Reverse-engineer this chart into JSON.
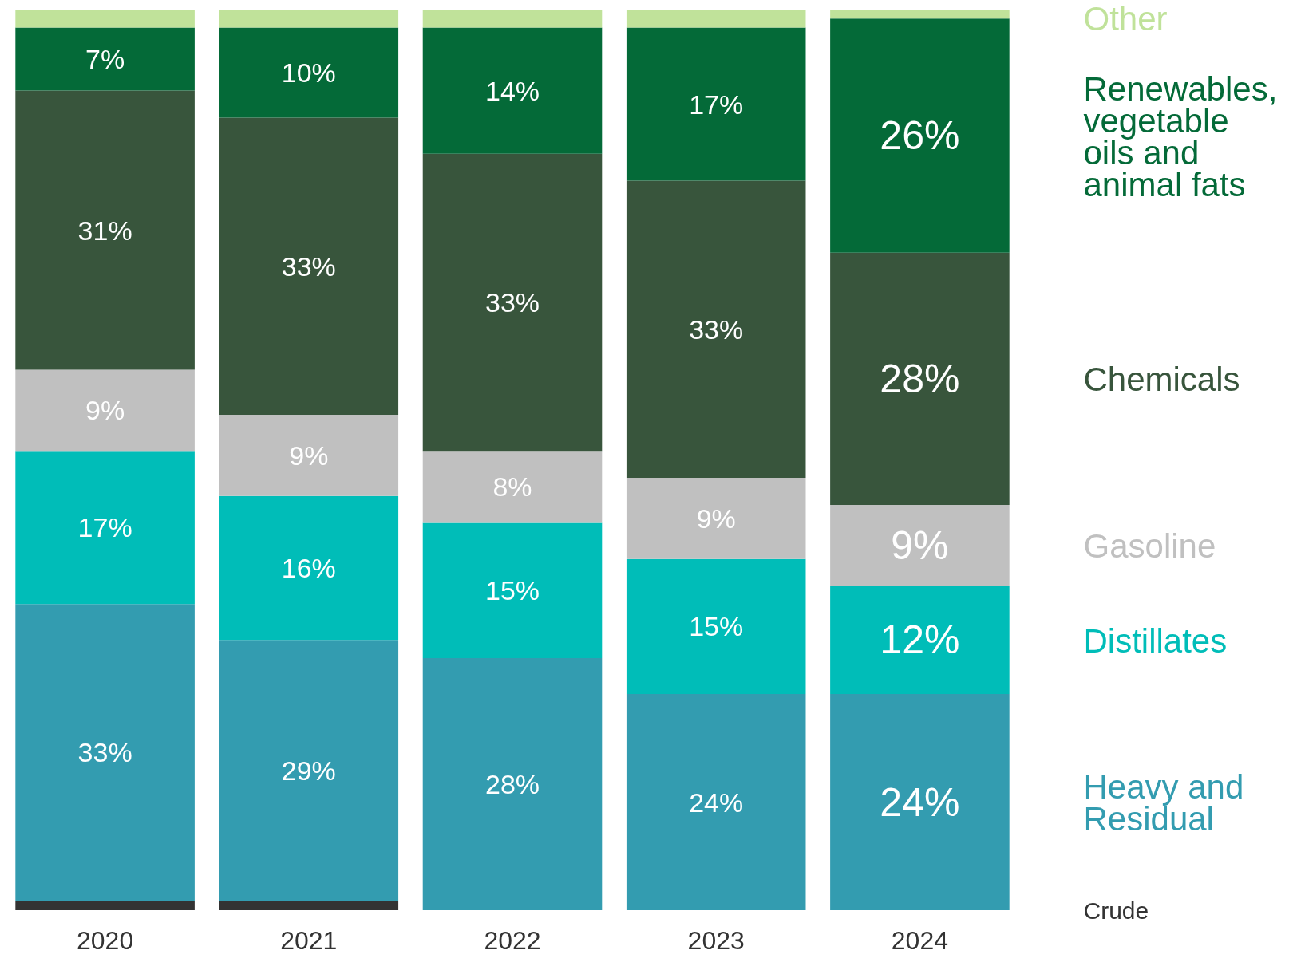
{
  "chart_data": {
    "type": "bar",
    "stacked": true,
    "legend": "right",
    "categories": [
      "2020",
      "2021",
      "2022",
      "2023",
      "2024"
    ],
    "series": [
      {
        "name": "Crude",
        "color": "#333333",
        "values": [
          1,
          1,
          0,
          0,
          0
        ]
      },
      {
        "name": "Heavy and Residual",
        "color": "#339cb0",
        "values": [
          33,
          29,
          28,
          24,
          24
        ],
        "value_labels": [
          "33%",
          "29%",
          "28%",
          "24%",
          "24%"
        ]
      },
      {
        "name": "Distillates",
        "color": "#00bdb8",
        "values": [
          17,
          16,
          15,
          15,
          12
        ],
        "value_labels": [
          "17%",
          "16%",
          "15%",
          "15%",
          "12%"
        ]
      },
      {
        "name": "Gasoline",
        "color": "#c0c0c0",
        "values": [
          9,
          9,
          8,
          9,
          9
        ],
        "value_labels": [
          "9%",
          "9%",
          "8%",
          "9%",
          "9%"
        ]
      },
      {
        "name": "Chemicals",
        "color": "#38553c",
        "values": [
          31,
          33,
          33,
          33,
          28
        ],
        "value_labels": [
          "31%",
          "33%",
          "33%",
          "33%",
          "28%"
        ]
      },
      {
        "name": "Renewables, vegetable oils and animal fats",
        "color": "#046a38",
        "values": [
          7,
          10,
          14,
          17,
          26
        ],
        "value_labels": [
          "7%",
          "10%",
          "14%",
          "17%",
          "26%"
        ]
      },
      {
        "name": "Other",
        "color": "#c0e29a",
        "values": [
          2,
          2,
          2,
          2,
          1
        ]
      }
    ]
  }
}
